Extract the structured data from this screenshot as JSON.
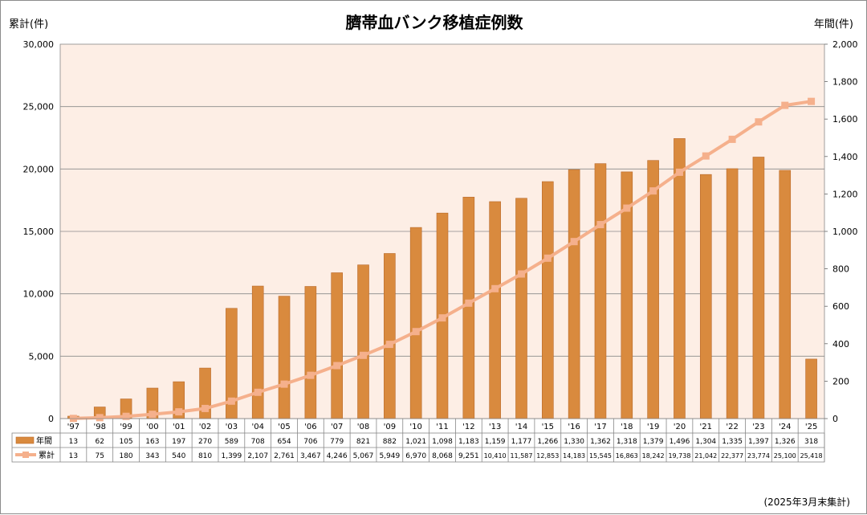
{
  "chart_data": {
    "type": "bar+line",
    "title": "臍帯血バンク移植症例数",
    "left_axis_label": "累計(件)",
    "right_axis_label": "年間(件)",
    "footnote": "(2025年3月末集計)",
    "categories": [
      "'97",
      "'98",
      "'99",
      "'00",
      "'01",
      "'02",
      "'03",
      "'04",
      "'05",
      "'06",
      "'07",
      "'08",
      "'09",
      "'10",
      "'11",
      "'12",
      "'13",
      "'14",
      "'15",
      "'16",
      "'17",
      "'18",
      "'19",
      "'20",
      "'21",
      "'22",
      "'23",
      "'24",
      "'25"
    ],
    "series": [
      {
        "name": "年間",
        "type": "bar",
        "axis": "right",
        "color": "#d98a3e",
        "values": [
          13,
          62,
          105,
          163,
          197,
          270,
          589,
          708,
          654,
          706,
          779,
          821,
          882,
          1021,
          1098,
          1183,
          1159,
          1177,
          1266,
          1330,
          1362,
          1318,
          1379,
          1496,
          1304,
          1335,
          1397,
          1326,
          318
        ],
        "labels": [
          "13",
          "62",
          "105",
          "163",
          "197",
          "270",
          "589",
          "708",
          "654",
          "706",
          "779",
          "821",
          "882",
          "1,021",
          "1,098",
          "1,183",
          "1,159",
          "1,177",
          "1,266",
          "1,330",
          "1,362",
          "1,318",
          "1,379",
          "1,496",
          "1,304",
          "1,335",
          "1,397",
          "1,326",
          "318"
        ]
      },
      {
        "name": "累計",
        "type": "line",
        "axis": "left",
        "color": "#f5b08c",
        "values": [
          13,
          75,
          180,
          343,
          540,
          810,
          1399,
          2107,
          2761,
          3467,
          4246,
          5067,
          5949,
          6970,
          8068,
          9251,
          10410,
          11587,
          12853,
          14183,
          15545,
          16863,
          18242,
          19738,
          21042,
          22377,
          23774,
          25100,
          25418
        ],
        "labels": [
          "13",
          "75",
          "180",
          "343",
          "540",
          "810",
          "1,399",
          "2,107",
          "2,761",
          "3,467",
          "4,246",
          "5,067",
          "5,949",
          "6,970",
          "8,068",
          "9,251",
          "10,410",
          "11,587",
          "12,853",
          "14,183",
          "15,545",
          "16,863",
          "18,242",
          "19,738",
          "21,042",
          "22,377",
          "23,774",
          "25,100",
          "25,418"
        ]
      }
    ],
    "left_axis": {
      "min": 0,
      "max": 30000,
      "ticks": [
        "0",
        "5,000",
        "10,000",
        "15,000",
        "20,000",
        "25,000",
        "30,000"
      ]
    },
    "right_axis": {
      "min": 0,
      "max": 2000,
      "ticks": [
        "0",
        "200",
        "400",
        "600",
        "800",
        "1,000",
        "1,200",
        "1,400",
        "1,600",
        "1,800",
        "2,000"
      ]
    },
    "plot_background": "#fdeee5",
    "gridlines": true,
    "data_table": true
  }
}
